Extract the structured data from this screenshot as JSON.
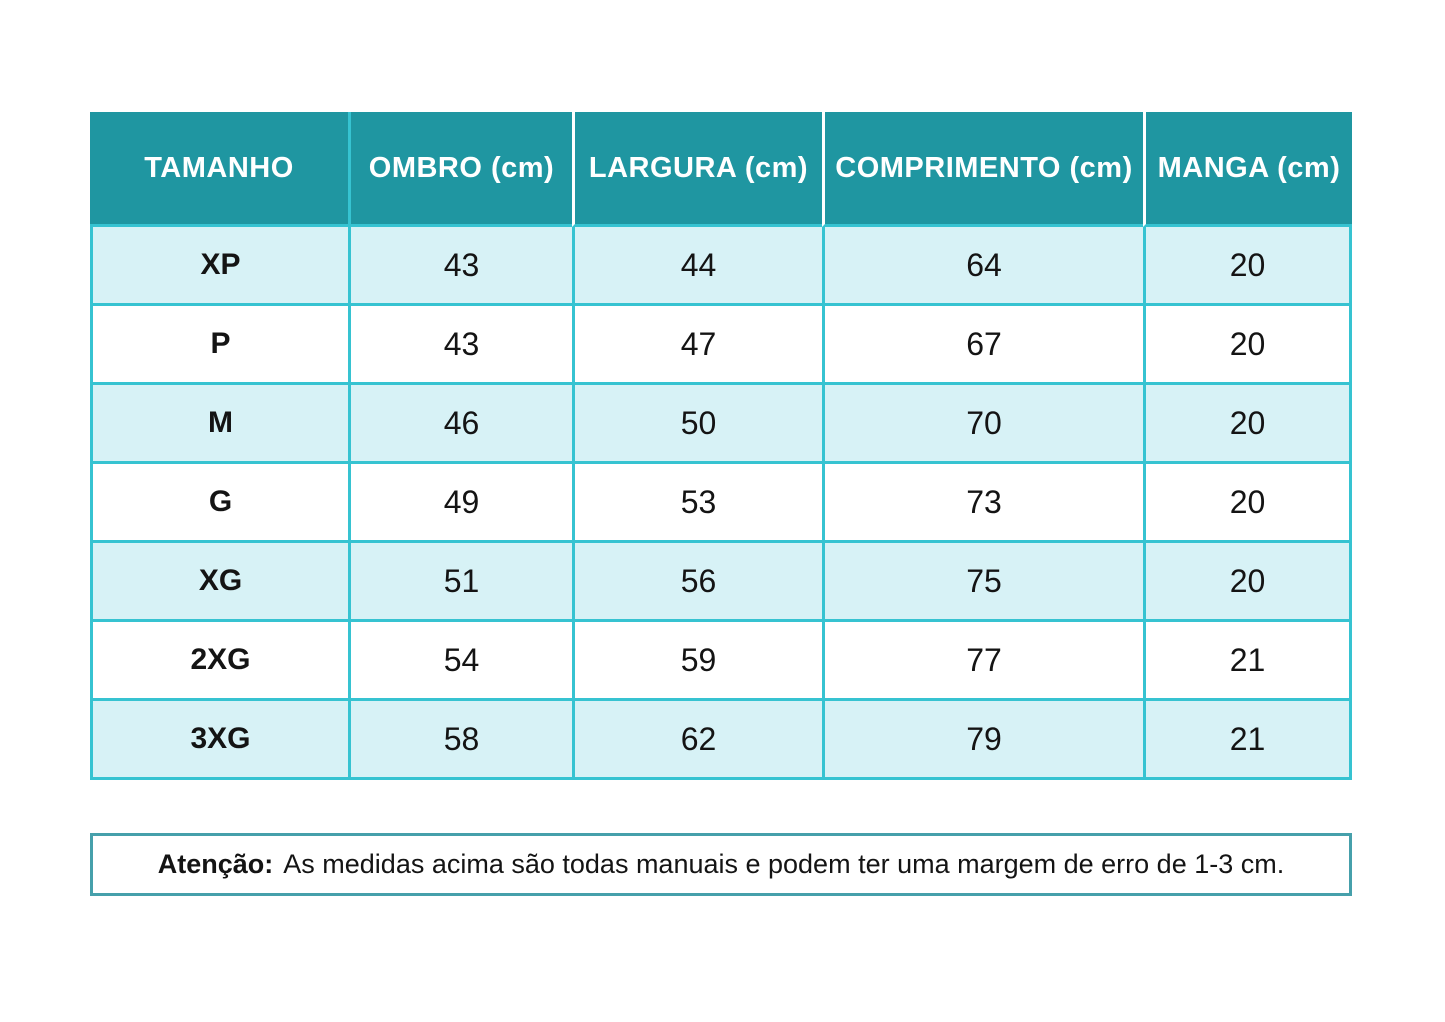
{
  "chart_data": {
    "type": "table",
    "title": "",
    "columns": [
      "TAMANHO",
      "OMBRO (cm)",
      "LARGURA (cm)",
      "COMPRIMENTO (cm)",
      "MANGA (cm)"
    ],
    "rows": [
      {
        "size": "XP",
        "ombro": 43,
        "largura": 44,
        "comprimento": 64,
        "manga": 20
      },
      {
        "size": "P",
        "ombro": 43,
        "largura": 47,
        "comprimento": 67,
        "manga": 20
      },
      {
        "size": "M",
        "ombro": 46,
        "largura": 50,
        "comprimento": 70,
        "manga": 20
      },
      {
        "size": "G",
        "ombro": 49,
        "largura": 53,
        "comprimento": 73,
        "manga": 20
      },
      {
        "size": "XG",
        "ombro": 51,
        "largura": 56,
        "comprimento": 75,
        "manga": 20
      },
      {
        "size": "2XG",
        "ombro": 54,
        "largura": 59,
        "comprimento": 77,
        "manga": 21
      },
      {
        "size": "3XG",
        "ombro": 58,
        "largura": 62,
        "comprimento": 79,
        "manga": 21
      }
    ],
    "layout": {
      "grid": true,
      "alternating_row_shading": true,
      "header_position": "top"
    }
  },
  "note": {
    "label": "Atenção:",
    "text": "As medidas acima são todas manuais e podem ter uma margem de erro de 1-3 cm."
  },
  "colors": {
    "header_bg": "#1F96A1",
    "grid_border": "#36C3D1",
    "row_alt_bg": "#D7F2F6",
    "row_bg": "#FFFFFF",
    "note_border": "#46A0AB",
    "header_text": "#FFFFFF",
    "body_text": "#141414"
  }
}
